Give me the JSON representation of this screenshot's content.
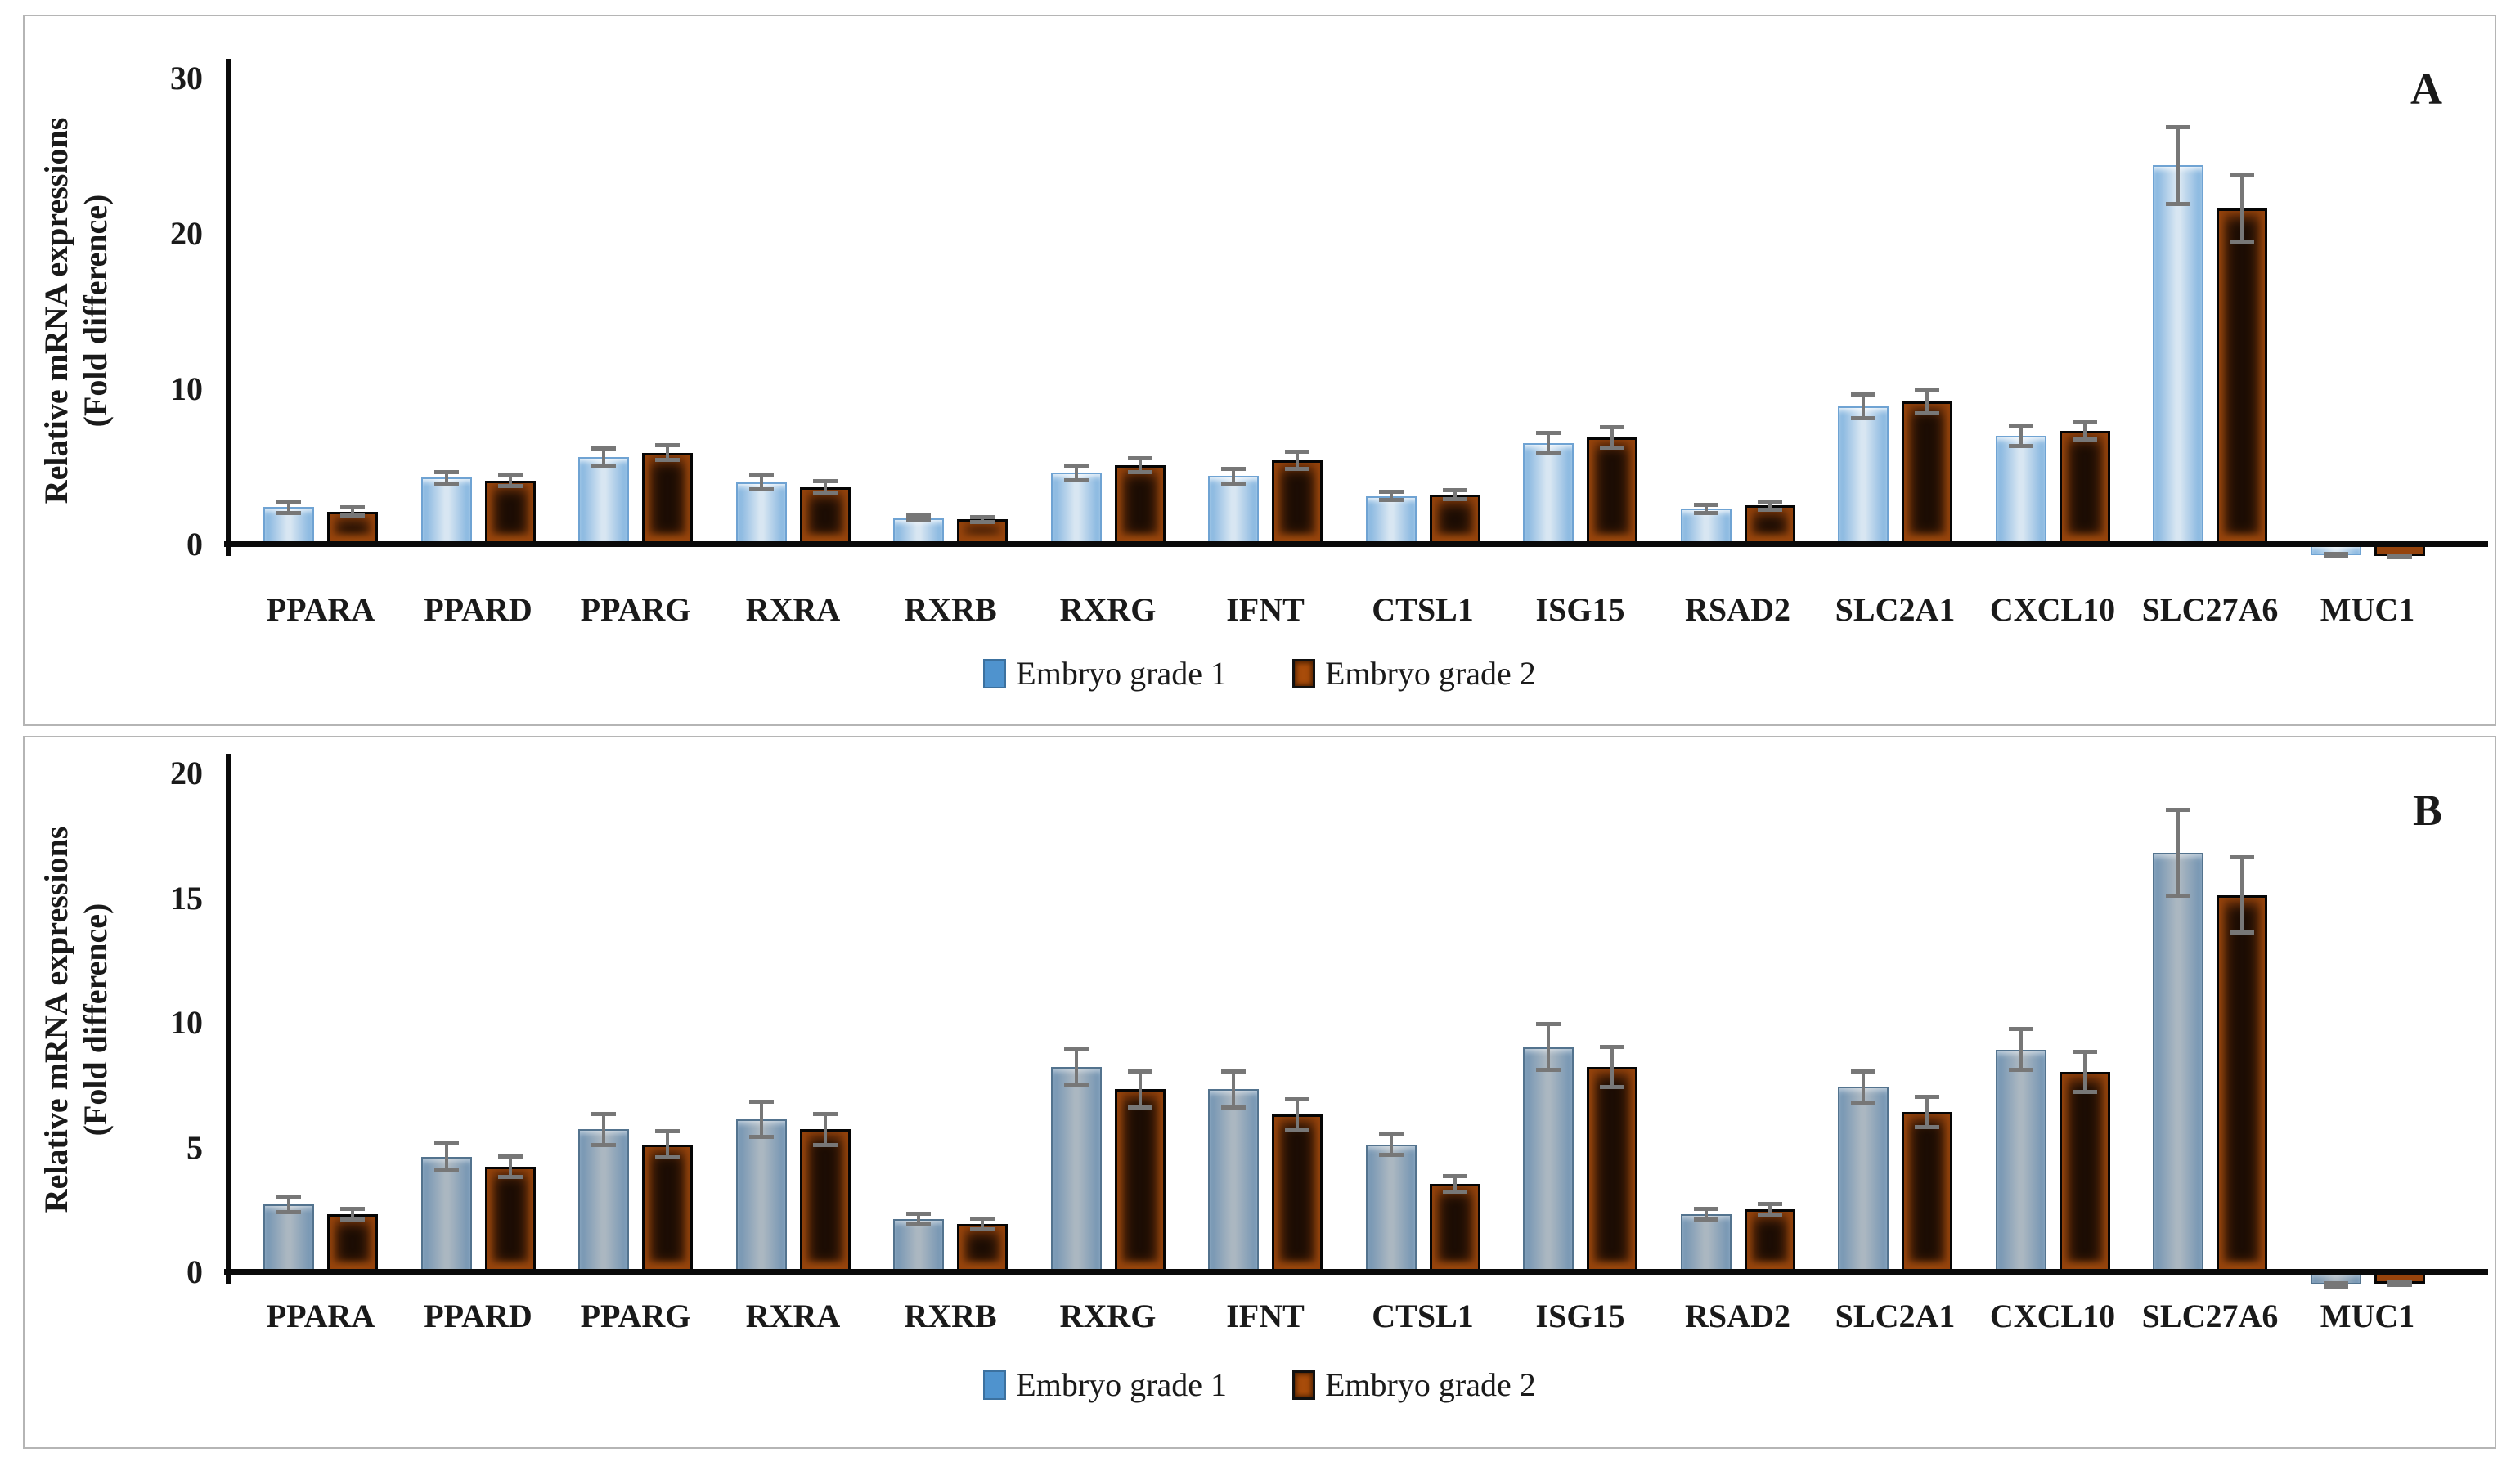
{
  "figure": {
    "background": "#ffffff",
    "panel_border_color": "#b5b5b5"
  },
  "colors": {
    "grade1_bar_panel_a": "#7fb2de",
    "grade1_bar_panel_b": "#7193b2",
    "grade2_bar_edge": "#96430c",
    "grade2_bar_center": "#1c0d04",
    "axis": "#0a0a0a",
    "error_bar": "#777777",
    "legend_grade1_swatch": "#4f93ce",
    "legend_grade2_swatch": "#a84c0a"
  },
  "chart_data": {
    "type": "bar",
    "panels": [
      {
        "label": "A",
        "ylabel": "Relative mRNA expressions",
        "ylabel2": "(Fold difference)",
        "ylim": [
          0,
          30
        ],
        "yticks": [
          0,
          10,
          20,
          30
        ],
        "grid": false,
        "legend_position": "bottom",
        "categories": [
          "PPARA",
          "PPARD",
          "PPARG",
          "RXRA",
          "RXRB",
          "RXRG",
          "IFNT",
          "CTSL1",
          "ISG15",
          "RSAD2",
          "SLC2A1",
          "CXCL10",
          "SLC27A6",
          "MUC1"
        ],
        "series": [
          {
            "name": "Embryo grade 1",
            "values": [
              2.2,
              4.1,
              5.4,
              3.8,
              1.5,
              4.4,
              4.2,
              2.9,
              6.3,
              2.1,
              8.7,
              6.8,
              24.2,
              -0.5
            ],
            "errors": [
              0.5,
              0.5,
              0.7,
              0.6,
              0.3,
              0.6,
              0.6,
              0.4,
              0.8,
              0.4,
              0.9,
              0.8,
              2.6,
              0.2
            ]
          },
          {
            "name": "Embryo grade 2",
            "values": [
              1.9,
              3.9,
              5.7,
              3.5,
              1.4,
              4.9,
              5.2,
              3.0,
              6.7,
              2.3,
              9.0,
              7.1,
              21.4,
              -0.6
            ],
            "errors": [
              0.4,
              0.5,
              0.6,
              0.5,
              0.3,
              0.6,
              0.7,
              0.4,
              0.8,
              0.4,
              0.9,
              0.7,
              2.3,
              0.2
            ]
          }
        ]
      },
      {
        "label": "B",
        "ylabel": "Relative mRNA expressions",
        "ylabel2": "(Fold difference)",
        "ylim": [
          0,
          20
        ],
        "yticks": [
          0,
          5,
          10,
          15,
          20
        ],
        "grid": false,
        "legend_position": "bottom",
        "categories": [
          "PPARA",
          "PPARD",
          "PPARG",
          "RXRA",
          "RXRB",
          "RXRG",
          "IFNT",
          "CTSL1",
          "ISG15",
          "RSAD2",
          "SLC2A1",
          "CXCL10",
          "SLC27A6",
          "MUC1"
        ],
        "series": [
          {
            "name": "Embryo grade 1",
            "values": [
              2.6,
              4.5,
              5.6,
              6.0,
              2.0,
              8.1,
              7.2,
              5.0,
              8.9,
              2.2,
              7.3,
              8.8,
              16.7,
              -0.4
            ],
            "errors": [
              0.4,
              0.6,
              0.7,
              0.8,
              0.3,
              0.8,
              0.8,
              0.5,
              1.0,
              0.3,
              0.7,
              0.9,
              1.8,
              0.15
            ]
          },
          {
            "name": "Embryo grade 2",
            "values": [
              2.2,
              4.1,
              5.0,
              5.6,
              1.8,
              7.2,
              6.2,
              3.4,
              8.1,
              2.4,
              6.3,
              7.9,
              15.0,
              -0.35
            ],
            "errors": [
              0.3,
              0.5,
              0.6,
              0.7,
              0.3,
              0.8,
              0.7,
              0.4,
              0.9,
              0.3,
              0.7,
              0.9,
              1.6,
              0.15
            ]
          }
        ]
      }
    ]
  }
}
